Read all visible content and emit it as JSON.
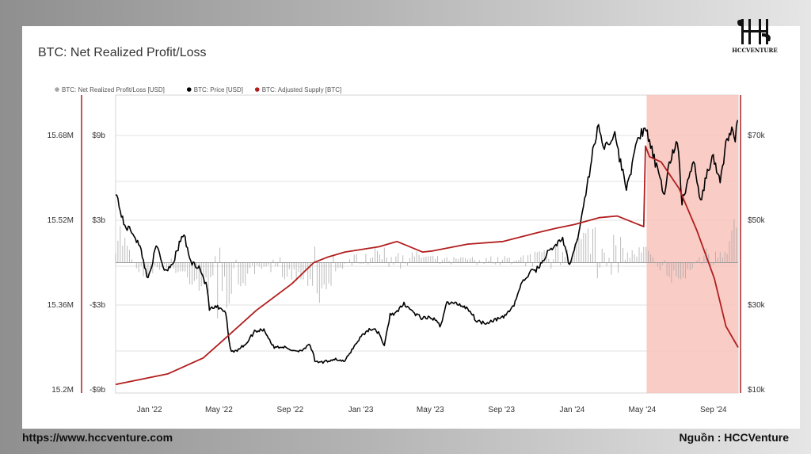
{
  "title": "BTC: Net Realized Profit/Loss",
  "footer": {
    "left": "https://www.hccventure.com",
    "right": "Nguồn : HCCVenture"
  },
  "logo_text": "HCCVENTURE",
  "colors": {
    "price": "#000000",
    "supply": "#b21e1e",
    "nrpl": "#a6a6a6",
    "highlight": "#f8c3bc"
  },
  "chart_data": {
    "type": "line",
    "legend": [
      {
        "name": "BTC: Net Realized Profit/Loss [USD]",
        "color": "#a6a6a6"
      },
      {
        "name": "BTC: Price [USD]",
        "color": "#000000"
      },
      {
        "name": "BTC: Adjusted Supply [BTC]",
        "color": "#b21e1e"
      }
    ],
    "legend_position": "top-left",
    "grid": true,
    "x_ticks": [
      "Jan '22",
      "May '22",
      "Sep '22",
      "Jan '23",
      "May '23",
      "Sep '23",
      "Jan '24",
      "May '24",
      "Sep '24"
    ],
    "x_range": [
      "2021-12-01",
      "2024-11-10"
    ],
    "y_axes": {
      "supply": {
        "ticks": [
          "15.68M",
          "15.52M",
          "15.36M",
          "15.2M"
        ],
        "range": [
          15200000,
          15680000
        ],
        "unit": "BTC"
      },
      "nrpl": {
        "ticks": [
          "$9b",
          "$3b",
          "-$3b",
          "-$9b"
        ],
        "range": [
          -9000000000,
          9000000000
        ],
        "unit": "USD"
      },
      "price": {
        "ticks": [
          "$70k",
          "$50k",
          "$30k",
          "$10k"
        ],
        "range": [
          10000,
          70000
        ],
        "unit": "USD"
      }
    },
    "highlight_range": [
      "2024-06-05",
      "2024-11-10"
    ],
    "series": [
      {
        "name": "BTC: Price [USD]",
        "x": [
          "2021-12-01",
          "2021-12-15",
          "2022-01-01",
          "2022-01-15",
          "2022-01-25",
          "2022-02-10",
          "2022-02-24",
          "2022-03-10",
          "2022-03-28",
          "2022-04-10",
          "2022-04-25",
          "2022-05-08",
          "2022-05-12",
          "2022-05-25",
          "2022-06-10",
          "2022-06-14",
          "2022-06-18",
          "2022-07-01",
          "2022-07-15",
          "2022-07-29",
          "2022-08-14",
          "2022-08-31",
          "2022-09-15",
          "2022-09-30",
          "2022-10-15",
          "2022-11-01",
          "2022-11-08",
          "2022-11-10",
          "2022-11-25",
          "2022-12-15",
          "2022-12-31",
          "2023-01-15",
          "2023-01-31",
          "2023-02-15",
          "2023-03-01",
          "2023-03-10",
          "2023-03-20",
          "2023-04-01",
          "2023-04-14",
          "2023-05-01",
          "2023-05-15",
          "2023-06-01",
          "2023-06-15",
          "2023-06-25",
          "2023-07-15",
          "2023-08-01",
          "2023-08-17",
          "2023-09-01",
          "2023-09-15",
          "2023-10-01",
          "2023-10-20",
          "2023-10-31",
          "2023-11-15",
          "2023-12-01",
          "2023-12-15",
          "2024-01-01",
          "2024-01-11",
          "2024-01-23",
          "2024-02-01",
          "2024-02-15",
          "2024-02-28",
          "2024-03-05",
          "2024-03-14",
          "2024-03-25",
          "2024-04-01",
          "2024-04-12",
          "2024-04-20",
          "2024-05-01",
          "2024-05-10",
          "2024-05-21",
          "2024-06-05",
          "2024-06-15",
          "2024-07-05",
          "2024-07-15",
          "2024-07-29",
          "2024-08-05",
          "2024-08-15",
          "2024-08-25",
          "2024-09-06",
          "2024-09-15",
          "2024-09-27",
          "2024-10-10",
          "2024-10-20",
          "2024-10-31",
          "2024-11-05",
          "2024-11-10"
        ],
        "y": [
          57000,
          49000,
          47000,
          42500,
          36000,
          44000,
          38000,
          40000,
          47000,
          40000,
          39000,
          34000,
          29000,
          29500,
          28000,
          22500,
          19000,
          19500,
          21000,
          23800,
          24300,
          20000,
          20200,
          19400,
          19200,
          20500,
          18500,
          16500,
          16500,
          17300,
          16600,
          19900,
          23000,
          24500,
          23500,
          20200,
          27800,
          28300,
          30400,
          28000,
          26800,
          27000,
          25000,
          30500,
          30300,
          29300,
          26200,
          25800,
          26500,
          27000,
          30000,
          34500,
          37500,
          38700,
          42000,
          44200,
          46000,
          39500,
          42500,
          51500,
          62000,
          67000,
          72000,
          67000,
          69000,
          70000,
          64000,
          58000,
          62000,
          70000,
          71000,
          66000,
          56000,
          64000,
          69000,
          54000,
          59000,
          64000,
          54000,
          60000,
          65000,
          59000,
          68000,
          72000,
          68000,
          76000
        ]
      },
      {
        "name": "BTC: Adjusted Supply [BTC]",
        "x": [
          "2021-12-01",
          "2022-03-01",
          "2022-05-01",
          "2022-06-01",
          "2022-08-01",
          "2022-10-01",
          "2022-11-08",
          "2022-12-01",
          "2023-01-01",
          "2023-03-01",
          "2023-04-01",
          "2023-05-15",
          "2023-06-01",
          "2023-08-01",
          "2023-10-01",
          "2023-12-01",
          "2024-01-01",
          "2024-02-01",
          "2024-03-15",
          "2024-04-15",
          "2024-05-15",
          "2024-05-31",
          "2024-06-03",
          "2024-06-10",
          "2024-06-30",
          "2024-07-31",
          "2024-08-31",
          "2024-09-30",
          "2024-10-20",
          "2024-11-10"
        ],
        "y": [
          15210000,
          15230000,
          15260000,
          15290000,
          15350000,
          15400000,
          15440000,
          15450000,
          15460000,
          15470000,
          15480000,
          15460000,
          15462000,
          15475000,
          15480000,
          15497000,
          15505000,
          15512000,
          15525000,
          15528000,
          15515000,
          15508000,
          15660000,
          15640000,
          15630000,
          15580000,
          15500000,
          15410000,
          15320000,
          15280000
        ]
      },
      {
        "name": "BTC: Net Realized Profit/Loss [USD]",
        "x": [
          "2021-12-01",
          "2022-01-05",
          "2022-01-22",
          "2022-02-20",
          "2022-05-09",
          "2022-05-12",
          "2022-06-13",
          "2022-06-18",
          "2022-08-10",
          "2022-11-09",
          "2022-11-10",
          "2023-01-15",
          "2023-03-13",
          "2023-06-20",
          "2023-10-24",
          "2024-01-10",
          "2024-02-28",
          "2024-03-05",
          "2024-03-14",
          "2024-03-20",
          "2024-04-13",
          "2024-05-02",
          "2024-06-05",
          "2024-07-05",
          "2024-08-05",
          "2024-09-10",
          "2024-10-15",
          "2024-10-29",
          "2024-11-10"
        ],
        "y": [
          4500000000,
          -500000000,
          -1200000000,
          -400000000,
          -2500000000,
          -4300000000,
          -3500000000,
          -2800000000,
          -700000000,
          -1800000000,
          -4100000000,
          700000000,
          1300000000,
          400000000,
          500000000,
          1300000000,
          3000000000,
          3500000000,
          5200000000,
          2200000000,
          2500000000,
          900000000,
          1400000000,
          -1300000000,
          -2000000000,
          1100000000,
          1600000000,
          3300000000,
          4700000000
        ]
      }
    ]
  }
}
